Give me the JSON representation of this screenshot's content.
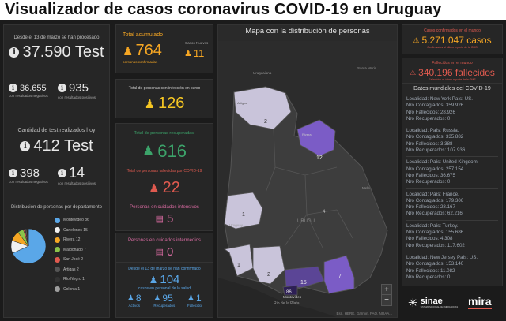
{
  "page_title": "Visualizador de casos coronavirus COVID-19 en Uruguay",
  "colors": {
    "orange": "#f5a623",
    "green": "#3ca36a",
    "red": "#e05a4f",
    "pink": "#d76aa0",
    "blue": "#5aa7e8",
    "map_purple": "#7b5cc6",
    "map_light": "#c9c4da"
  },
  "tests": {
    "header": "Desde el 13 de marzo se han procesado",
    "total": "37.590 Test",
    "negatives_value": "36.655",
    "negatives_label": "con resultados negativos",
    "positives_value": "935",
    "positives_label": "con resultados positivos"
  },
  "tests_today": {
    "header": "Cantidad de test realizados hoy",
    "total": "412 Test",
    "negatives_value": "398",
    "negatives_label": "con resultados negativos",
    "positives_value": "14",
    "positives_label": "con resultados positivos"
  },
  "departments": {
    "header": "Distribución de personas por departamento",
    "items": [
      {
        "label": "Montevideo 86",
        "color": "#5aa7e8",
        "value": 86
      },
      {
        "label": "Canelones 15",
        "color": "#f0f0f0",
        "value": 15
      },
      {
        "label": "Rivera 12",
        "color": "#f5a623",
        "value": 12
      },
      {
        "label": "Maldonado 7",
        "color": "#8bc34a",
        "value": 7
      },
      {
        "label": "San José 2",
        "color": "#e05a4f",
        "value": 2
      },
      {
        "label": "Artigas 2",
        "color": "#555555",
        "value": 2
      },
      {
        "label": "Río Negro 1",
        "color": "#333333",
        "value": 1
      },
      {
        "label": "Colonia 1",
        "color": "#9e9e9e",
        "value": 1
      }
    ]
  },
  "accumulated": {
    "header": "Total acumulado",
    "value": "764",
    "label": "personas confirmadas",
    "new_header": "Casos Nuevos",
    "new_value": "11"
  },
  "active": {
    "header": "Total de personas con infección en curso",
    "value": "126"
  },
  "recovered": {
    "header": "Total de personas recuperadas:",
    "value": "616"
  },
  "deaths": {
    "header": "Total de personas fallecidas por COVID-19",
    "value": "22"
  },
  "icu": {
    "header": "Personas en cuidados intensivos",
    "value": "5"
  },
  "intermediate": {
    "header": "Personas en cuidados intermedios",
    "value": "0"
  },
  "health_staff": {
    "header": "Desde el 13 de marzo se han confirmado",
    "value": "104",
    "label": "casos en personal de la salud",
    "active_value": "8",
    "active_label": "Activos",
    "recovered_value": "95",
    "recovered_label": "Recuperados",
    "deceased_value": "1",
    "deceased_label": "Fallecido"
  },
  "map": {
    "title": "Mapa con la distribución de personas",
    "attribution": "Esri, HERE, Garmin, FAO, NOAA...",
    "labels": [
      "Uruguaiana",
      "Santa Maria",
      "Uruguay",
      "Rio de la Plata",
      "Melo",
      "Montevideo",
      "Artigas",
      "Rivera",
      "URUGU"
    ],
    "counts": [
      "2",
      "12",
      "1",
      "1",
      "2",
      "15",
      "7",
      "86",
      "4"
    ],
    "zoom_in": "+",
    "zoom_out": "−"
  },
  "world": {
    "confirmed_header": "Casos confirmados en el mundo",
    "confirmed_value": "5.271.047 casos",
    "confirmed_note": "Confirmados al último reporte de la OMS",
    "deaths_header": "Fallecidos en el mundo",
    "deaths_value": "340.196 fallecidos",
    "deaths_note": "Fallecidos al último reporte de la OMS",
    "list_header": "Datos mundiales del COVID-19",
    "entries": [
      {
        "loc": "Localidad: New York País: US.",
        "cont": "Nro Contagiados: 359.926",
        "fall": "Nro Fallecidos: 28.926",
        "rec": "Nro Recuperados: 0"
      },
      {
        "loc": "Localidad:  País: Russia.",
        "cont": "Nro Contagiados: 335.882",
        "fall": "Nro Fallecidos: 3.388",
        "rec": "Nro Recuperados: 107.936"
      },
      {
        "loc": "Localidad:  País: United Kingdom.",
        "cont": "Nro Contagiados: 257.154",
        "fall": "Nro Fallecidos: 36.675",
        "rec": "Nro Recuperados: 0"
      },
      {
        "loc": "Localidad:  País: France.",
        "cont": "Nro Contagiados: 179.306",
        "fall": "Nro Fallecidos: 28.167",
        "rec": "Nro Recuperados: 62.216"
      },
      {
        "loc": "Localidad:  País: Turkey.",
        "cont": "Nro Contagiados: 155.686",
        "fall": "Nro Fallecidos: 4.308",
        "rec": "Nro Recuperados: 117.602"
      },
      {
        "loc": "Localidad: New Jersey País: US.",
        "cont": "Nro Contagiados: 153.140",
        "fall": "Nro Fallecidos: 11.082",
        "rec": "Nro Recuperados: 0"
      }
    ]
  },
  "logos": {
    "sinae": "sinae",
    "sinae_sub": "SISTEMA NACIONAL DE EMERGENCIAS",
    "mira": "mira"
  }
}
